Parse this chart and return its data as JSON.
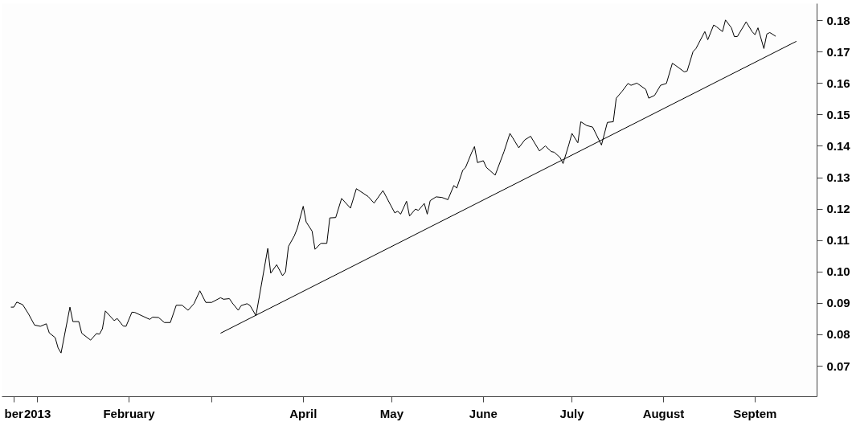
{
  "chart_data": {
    "type": "line",
    "x": [
      "2012-12-23",
      "2012-12-24",
      "2012-12-25",
      "2012-12-27",
      "2012-12-29",
      "2012-12-31",
      "2013-01-02",
      "2013-01-04",
      "2013-01-05",
      "2013-01-07",
      "2013-01-08",
      "2013-01-09",
      "2013-01-12",
      "2013-01-13",
      "2013-01-15",
      "2013-01-16",
      "2013-01-19",
      "2013-01-21",
      "2013-01-22",
      "2013-01-23",
      "2013-01-24",
      "2013-01-27",
      "2013-01-28",
      "2013-01-30",
      "2013-01-31",
      "2013-02-02",
      "2013-02-03",
      "2013-02-08",
      "2013-02-09",
      "2013-02-11",
      "2013-02-13",
      "2013-02-15",
      "2013-02-17",
      "2013-02-19",
      "2013-02-21",
      "2013-02-23",
      "2013-02-25",
      "2013-02-27",
      "2013-03-01",
      "2013-03-04",
      "2013-03-05",
      "2013-03-07",
      "2013-03-08",
      "2013-03-10",
      "2013-03-11",
      "2013-03-13",
      "2013-03-14",
      "2013-03-16",
      "2013-03-20",
      "2013-03-21",
      "2013-03-23",
      "2013-03-25",
      "2013-03-26",
      "2013-03-27",
      "2013-03-29",
      "2013-03-30",
      "2013-04-01",
      "2013-04-02",
      "2013-04-04",
      "2013-04-05",
      "2013-04-07",
      "2013-04-09",
      "2013-04-10",
      "2013-04-12",
      "2013-04-14",
      "2013-04-17",
      "2013-04-19",
      "2013-04-23",
      "2013-04-25",
      "2013-04-28",
      "2013-05-02",
      "2013-05-03",
      "2013-05-04",
      "2013-05-06",
      "2013-05-07",
      "2013-05-09",
      "2013-05-10",
      "2013-05-12",
      "2013-05-13",
      "2013-05-14",
      "2013-05-16",
      "2013-05-18",
      "2013-05-20",
      "2013-05-22",
      "2013-05-23",
      "2013-05-25",
      "2013-05-26",
      "2013-05-28",
      "2013-05-29",
      "2013-05-30",
      "2013-06-01",
      "2013-06-02",
      "2013-06-05",
      "2013-06-08",
      "2013-06-10",
      "2013-06-11",
      "2013-06-13",
      "2013-06-15",
      "2013-06-17",
      "2013-06-20",
      "2013-06-22",
      "2013-06-24",
      "2013-06-25",
      "2013-06-27",
      "2013-06-28",
      "2013-06-30",
      "2013-07-01",
      "2013-07-03",
      "2013-07-04",
      "2013-07-06",
      "2013-07-08",
      "2013-07-11",
      "2013-07-13",
      "2013-07-15",
      "2013-07-16",
      "2013-07-18",
      "2013-07-20",
      "2013-07-21",
      "2013-07-23",
      "2013-07-26",
      "2013-07-27",
      "2013-07-29",
      "2013-07-31",
      "2013-08-02",
      "2013-08-04",
      "2013-08-05",
      "2013-08-08",
      "2013-08-09",
      "2013-08-11",
      "2013-08-12",
      "2013-08-15",
      "2013-08-16",
      "2013-08-18",
      "2013-08-19",
      "2013-08-21",
      "2013-08-22",
      "2013-08-24",
      "2013-08-25",
      "2013-08-26",
      "2013-08-29",
      "2013-08-31",
      "2013-09-01",
      "2013-09-02",
      "2013-09-04",
      "2013-09-05",
      "2013-09-06",
      "2013-09-08"
    ],
    "series": [
      {
        "color": "#000000",
        "values": [
          0.0888,
          0.0888,
          0.0904,
          0.0896,
          0.0866,
          0.0831,
          0.0827,
          0.0835,
          0.0806,
          0.0791,
          0.0758,
          0.0742,
          0.0888,
          0.0842,
          0.0842,
          0.0805,
          0.0783,
          0.0804,
          0.0802,
          0.0819,
          0.0876,
          0.0845,
          0.0852,
          0.0828,
          0.0827,
          0.0872,
          0.0871,
          0.0849,
          0.0856,
          0.0855,
          0.0839,
          0.0839,
          0.0894,
          0.0894,
          0.0878,
          0.0899,
          0.094,
          0.0903,
          0.0903,
          0.0918,
          0.0913,
          0.0915,
          0.0901,
          0.0878,
          0.0893,
          0.0899,
          0.0893,
          0.0861,
          0.1075,
          0.0996,
          0.1023,
          0.0988,
          0.1,
          0.1081,
          0.1115,
          0.1139,
          0.1209,
          0.1159,
          0.113,
          0.1072,
          0.1091,
          0.1091,
          0.1172,
          0.1173,
          0.1234,
          0.1203,
          0.1265,
          0.124,
          0.1219,
          0.1259,
          0.1188,
          0.1193,
          0.1184,
          0.1225,
          0.1178,
          0.12,
          0.1196,
          0.1218,
          0.1184,
          0.1227,
          0.1239,
          0.1237,
          0.123,
          0.1275,
          0.1267,
          0.1323,
          0.1333,
          0.1379,
          0.1399,
          0.1348,
          0.1354,
          0.1333,
          0.1308,
          0.1383,
          0.1441,
          0.1426,
          0.1395,
          0.142,
          0.1432,
          0.1385,
          0.1401,
          0.1383,
          0.1381,
          0.1364,
          0.1345,
          0.1407,
          0.1441,
          0.1411,
          0.1478,
          0.1466,
          0.1461,
          0.1404,
          0.1476,
          0.1478,
          0.1553,
          0.1575,
          0.16,
          0.1594,
          0.1601,
          0.1581,
          0.1553,
          0.1562,
          0.1594,
          0.16,
          0.1664,
          0.1658,
          0.1637,
          0.1639,
          0.1701,
          0.1711,
          0.1765,
          0.1739,
          0.1786,
          0.178,
          0.1765,
          0.1802,
          0.1777,
          0.1749,
          0.1749,
          0.1796,
          0.1765,
          0.1755,
          0.1777,
          0.1711,
          0.1757,
          0.1762,
          0.175
        ]
      },
      {
        "type": "line",
        "color": "#000000",
        "x": [
          "2013-03-04",
          "2013-09-15"
        ],
        "values": [
          0.0805,
          0.1734
        ]
      }
    ],
    "xlim": [
      "2012-12-20",
      "2013-09-22"
    ],
    "xticks": [
      {
        "value": "2012-12-24",
        "label": "ber"
      },
      {
        "value": "2013-01-01",
        "label": "2013"
      },
      {
        "value": "2013-02-01",
        "label": "February"
      },
      {
        "value": "2013-03-01",
        "label": null
      },
      {
        "value": "2013-04-01",
        "label": "April"
      },
      {
        "value": "2013-05-01",
        "label": "May"
      },
      {
        "value": "2013-06-01",
        "label": "June"
      },
      {
        "value": "2013-07-01",
        "label": "July"
      },
      {
        "value": "2013-08-01",
        "label": "August"
      },
      {
        "value": "2013-09-01",
        "label": "Septem"
      }
    ],
    "ylim": [
      0.0603,
      0.1854
    ],
    "yticks": [
      {
        "value": 0.07,
        "label": "0.07"
      },
      {
        "value": 0.08,
        "label": "0.08"
      },
      {
        "value": 0.09,
        "label": "0.09"
      },
      {
        "value": 0.1,
        "label": "0.10"
      },
      {
        "value": 0.11,
        "label": "0.11"
      },
      {
        "value": 0.12,
        "label": "0.12"
      },
      {
        "value": 0.13,
        "label": "0.13"
      },
      {
        "value": 0.14,
        "label": "0.14"
      },
      {
        "value": 0.15,
        "label": "0.15"
      },
      {
        "value": 0.16,
        "label": "0.16"
      },
      {
        "value": 0.17,
        "label": "0.17"
      },
      {
        "value": 0.18,
        "label": "0.18"
      }
    ],
    "grid": false,
    "marker": "none",
    "line_style": "solid"
  }
}
